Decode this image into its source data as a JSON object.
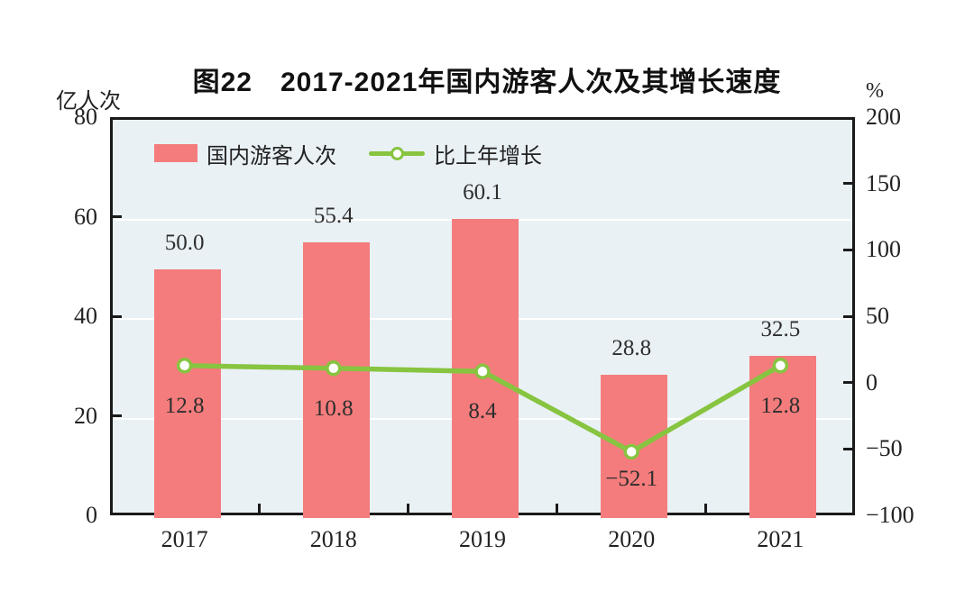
{
  "chart_data": {
    "type": "combo",
    "title": "图22　2017-2021年国内游客人次及其增长速度",
    "categories": [
      "2017",
      "2018",
      "2019",
      "2020",
      "2021"
    ],
    "series": [
      {
        "name": "国内游客人次",
        "type": "bar",
        "axis": "left",
        "color": "#f47c7c",
        "values": [
          50.0,
          55.4,
          60.1,
          28.8,
          32.5
        ],
        "labels": [
          "50.0",
          "55.4",
          "60.1",
          "28.8",
          "32.5"
        ]
      },
      {
        "name": "比上年增长",
        "type": "line",
        "axis": "right",
        "color": "#87c440",
        "marker": "white-circle-green-ring",
        "values": [
          12.8,
          10.8,
          8.4,
          -52.1,
          12.8
        ],
        "labels": [
          "12.8",
          "10.8",
          "8.4",
          "−52.1",
          "12.8"
        ]
      }
    ],
    "left_axis": {
      "unit": "亿人次",
      "min": 0,
      "max": 80,
      "tick_values": [
        80,
        60,
        40,
        20,
        0
      ],
      "tick_labels": [
        "80",
        "60",
        "40",
        "20",
        "0"
      ]
    },
    "right_axis": {
      "unit": "%",
      "min": -100,
      "max": 200,
      "tick_values": [
        200,
        150,
        100,
        50,
        0,
        -50,
        -100
      ],
      "tick_labels": [
        "200",
        "150",
        "100",
        "50",
        "0",
        "−50",
        "−100"
      ]
    },
    "colors": {
      "plot_background": "#e9f1f5",
      "gridline": "#ffffff",
      "axis": "#1a1a1a",
      "label_text": "#2e2e2e"
    },
    "grid": "horizontal-white-at-interior-left-ticks",
    "legend_position": "top-left-inside"
  }
}
